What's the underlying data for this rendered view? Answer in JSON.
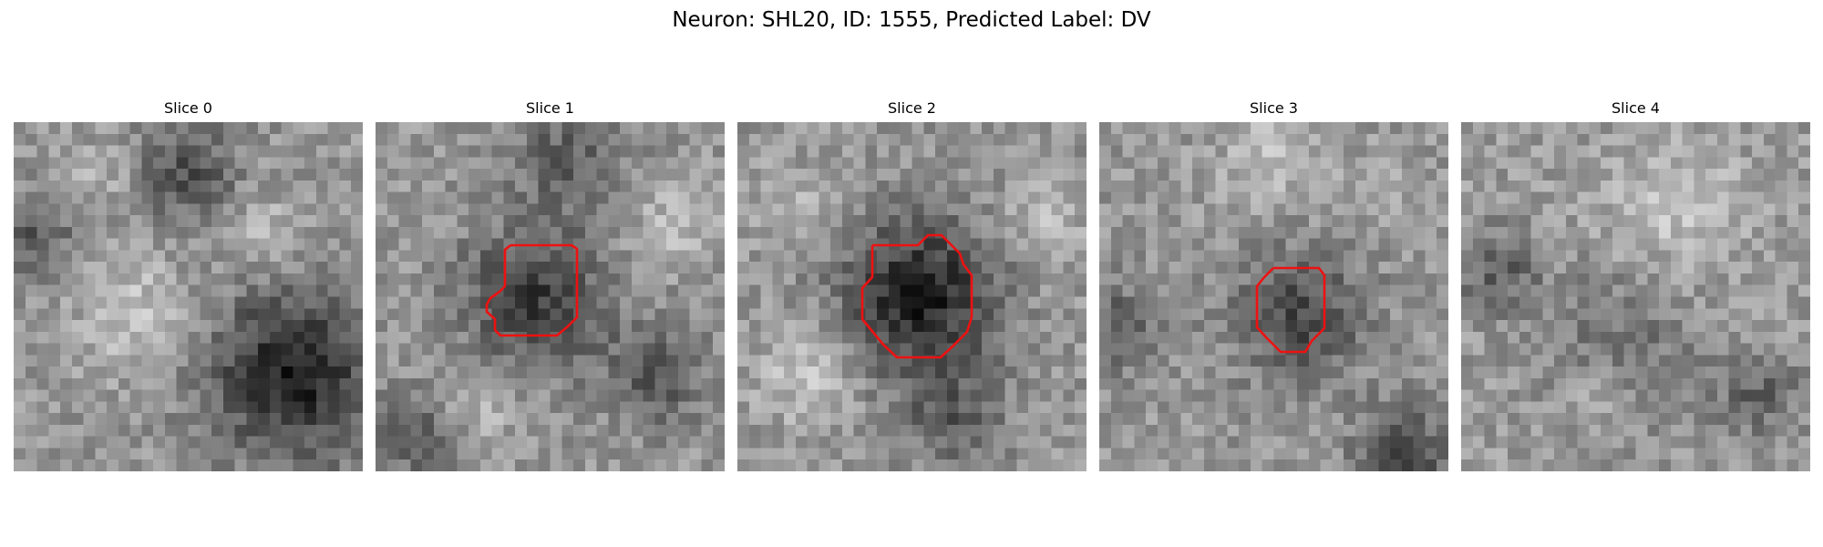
{
  "figure": {
    "title": "Neuron: SHL20, ID: 1555, Predicted Label: DV"
  },
  "colors": {
    "contour": "#ee1111",
    "background": "#ffffff"
  },
  "slices": [
    {
      "title": "Slice 0",
      "has_contour": false
    },
    {
      "title": "Slice 1",
      "has_contour": true
    },
    {
      "title": "Slice 2",
      "has_contour": true
    },
    {
      "title": "Slice 3",
      "has_contour": true
    },
    {
      "title": "Slice 4",
      "has_contour": false
    }
  ]
}
